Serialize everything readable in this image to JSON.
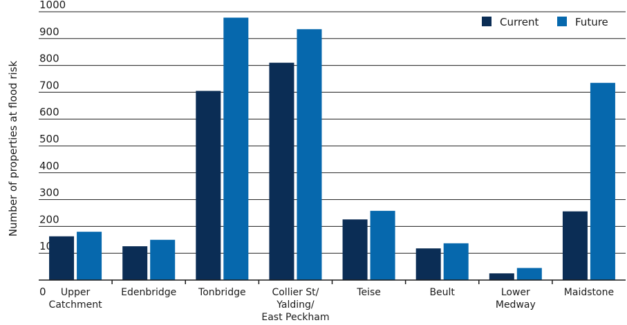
{
  "chart_data": {
    "type": "bar",
    "ylabel": "Number of properties at flood risk",
    "ylim": [
      0,
      1000
    ],
    "yticks": [
      0,
      100,
      200,
      300,
      400,
      500,
      600,
      700,
      800,
      900,
      1000
    ],
    "grid": true,
    "legend_position": "top-right",
    "categories": [
      [
        "Upper",
        "Catchment"
      ],
      [
        "Edenbridge"
      ],
      [
        "Tonbridge"
      ],
      [
        "Collier St/",
        "Yalding/",
        "East Peckham"
      ],
      [
        "Teise"
      ],
      [
        "Beult"
      ],
      [
        "Lower",
        "Medway"
      ],
      [
        "Maidstone"
      ]
    ],
    "series": [
      {
        "name": "Current",
        "color": "#0b2d55",
        "values": [
          163,
          126,
          705,
          810,
          226,
          118,
          25,
          256
        ]
      },
      {
        "name": "Future",
        "color": "#0668ad",
        "values": [
          180,
          150,
          978,
          935,
          258,
          137,
          45,
          735
        ]
      }
    ]
  }
}
